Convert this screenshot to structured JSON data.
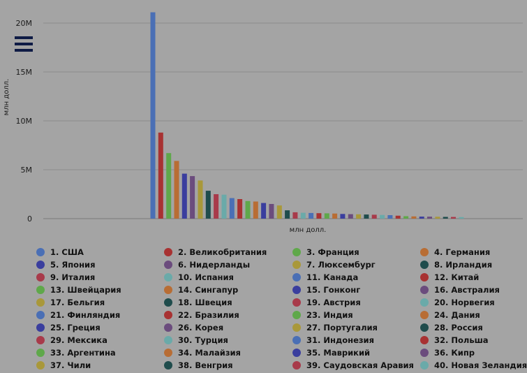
{
  "chart_data": {
    "type": "bar",
    "title": "",
    "ylabel": "млн долл.",
    "xlabel": "млн долл.",
    "ylim": [
      0,
      21000000
    ],
    "y_ticks": [
      {
        "value": 0,
        "label": "0"
      },
      {
        "value": 5000000,
        "label": "5M"
      },
      {
        "value": 10000000,
        "label": "10M"
      },
      {
        "value": 15000000,
        "label": "15M"
      },
      {
        "value": 20000000,
        "label": "20M"
      }
    ],
    "grid": true,
    "legend_position": "bottom",
    "series": [
      {
        "name": "1. США",
        "value": 21100000,
        "color": "#4a6fb5"
      },
      {
        "name": "2. Великобритания",
        "value": 8800000,
        "color": "#a83232"
      },
      {
        "name": "3. Франция",
        "value": 6700000,
        "color": "#5fa84a"
      },
      {
        "name": "4. Германия",
        "value": 5900000,
        "color": "#b86d34"
      },
      {
        "name": "5. Япония",
        "value": 4600000,
        "color": "#3a3e9e"
      },
      {
        "name": "6. Нидерланды",
        "value": 4350000,
        "color": "#6b4c7d"
      },
      {
        "name": "7. Люксембург",
        "value": 3900000,
        "color": "#a9983a"
      },
      {
        "name": "8. Ирландия",
        "value": 2850000,
        "color": "#1f4c4c"
      },
      {
        "name": "9. Италия",
        "value": 2500000,
        "color": "#a83a4a"
      },
      {
        "name": "10. Испания",
        "value": 2450000,
        "color": "#6aaaa9"
      },
      {
        "name": "11. Канада",
        "value": 2100000,
        "color": "#4a6fb5"
      },
      {
        "name": "12. Китай",
        "value": 2000000,
        "color": "#a83232"
      },
      {
        "name": "13. Швейцария",
        "value": 1800000,
        "color": "#5fa84a"
      },
      {
        "name": "14. Сингапур",
        "value": 1750000,
        "color": "#b86d34"
      },
      {
        "name": "15. Гонконг",
        "value": 1600000,
        "color": "#3a3e9e"
      },
      {
        "name": "16. Австралия",
        "value": 1500000,
        "color": "#6b4c7d"
      },
      {
        "name": "17. Бельгия",
        "value": 1350000,
        "color": "#a9983a"
      },
      {
        "name": "18. Швеция",
        "value": 850000,
        "color": "#1f4c4c"
      },
      {
        "name": "19. Австрия",
        "value": 650000,
        "color": "#a83a4a"
      },
      {
        "name": "20. Норвегия",
        "value": 600000,
        "color": "#6aaaa9"
      },
      {
        "name": "21. Финляндия",
        "value": 580000,
        "color": "#4a6fb5"
      },
      {
        "name": "22. Бразилия",
        "value": 560000,
        "color": "#a83232"
      },
      {
        "name": "23. Индия",
        "value": 540000,
        "color": "#5fa84a"
      },
      {
        "name": "24. Дания",
        "value": 520000,
        "color": "#b86d34"
      },
      {
        "name": "25. Греция",
        "value": 480000,
        "color": "#3a3e9e"
      },
      {
        "name": "26. Корея",
        "value": 460000,
        "color": "#6b4c7d"
      },
      {
        "name": "27. Португалия",
        "value": 440000,
        "color": "#a9983a"
      },
      {
        "name": "28. Россия",
        "value": 420000,
        "color": "#1f4c4c"
      },
      {
        "name": "29. Мексика",
        "value": 400000,
        "color": "#a83a4a"
      },
      {
        "name": "30. Турция",
        "value": 380000,
        "color": "#6aaaa9"
      },
      {
        "name": "31. Индонезия",
        "value": 360000,
        "color": "#4a6fb5"
      },
      {
        "name": "32. Польша",
        "value": 300000,
        "color": "#a83232"
      },
      {
        "name": "33. Аргентина",
        "value": 250000,
        "color": "#5fa84a"
      },
      {
        "name": "34. Малайзия",
        "value": 230000,
        "color": "#b86d34"
      },
      {
        "name": "35. Маврикий",
        "value": 210000,
        "color": "#3a3e9e"
      },
      {
        "name": "36. Кипр",
        "value": 200000,
        "color": "#6b4c7d"
      },
      {
        "name": "37. Чили",
        "value": 190000,
        "color": "#a9983a"
      },
      {
        "name": "38. Венгрия",
        "value": 180000,
        "color": "#1f4c4c"
      },
      {
        "name": "39. Саудовская Аравия",
        "value": 170000,
        "color": "#a83a4a"
      },
      {
        "name": "40. Новая Зеландия",
        "value": 160000,
        "color": "#6aaaa9"
      }
    ]
  },
  "menu": {
    "icon": "hamburger-menu-icon"
  }
}
